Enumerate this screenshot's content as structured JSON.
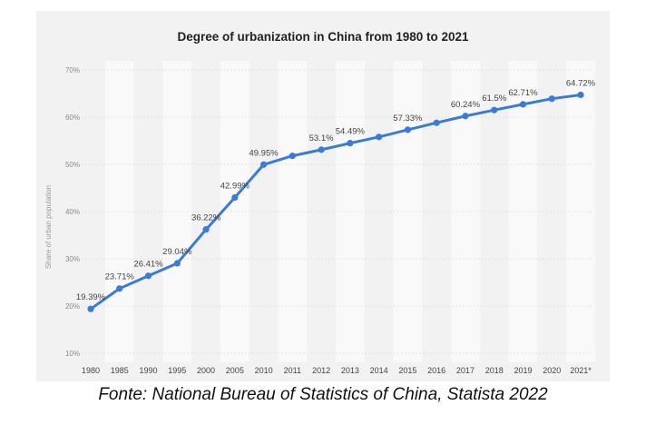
{
  "chart_data": {
    "type": "line",
    "title": "Degree of urbanization in China from 1980 to 2021",
    "xlabel": "",
    "ylabel": "Share of urban population",
    "ylim": [
      10,
      70
    ],
    "yticks": [
      "10%",
      "20%",
      "30%",
      "40%",
      "50%",
      "60%",
      "70%"
    ],
    "categories": [
      "1980",
      "1985",
      "1990",
      "1995",
      "2000",
      "2005",
      "2010",
      "2011",
      "2012",
      "2013",
      "2014",
      "2015",
      "2016",
      "2017",
      "2018",
      "2019",
      "2020",
      "2021*"
    ],
    "values": [
      19.39,
      23.71,
      26.41,
      29.04,
      36.22,
      42.99,
      49.95,
      51.8,
      53.1,
      54.49,
      55.8,
      57.33,
      58.8,
      60.24,
      61.5,
      62.71,
      63.9,
      64.72
    ],
    "data_labels": [
      "19.39%",
      "23.71%",
      "26.41%",
      "29.04%",
      "36.22%",
      "42.99%",
      "49.95%",
      "",
      "53.1%",
      "54.49%",
      "",
      "57.33%",
      "",
      "60.24%",
      "61.5%",
      "62.71%",
      "",
      "64.72%"
    ],
    "line_color": "#3a7bd5",
    "grid": true,
    "legend": "none"
  },
  "caption": "Fonte: National Bureau of Statistics of China, Statista 2022"
}
